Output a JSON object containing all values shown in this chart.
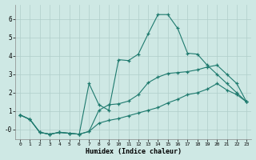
{
  "xlabel": "Humidex (Indice chaleur)",
  "ylabel": "",
  "background_color": "#cee8e4",
  "grid_color": "#b0ceca",
  "line_color": "#1e7a6e",
  "xlim": [
    -0.5,
    23.5
  ],
  "ylim": [
    -0.5,
    6.8
  ],
  "yticks": [
    0,
    1,
    2,
    3,
    4,
    5,
    6
  ],
  "ytick_labels": [
    "-0",
    "1",
    "2",
    "3",
    "4",
    "5",
    "6"
  ],
  "xticks": [
    0,
    1,
    2,
    3,
    4,
    5,
    6,
    7,
    8,
    9,
    10,
    11,
    12,
    13,
    14,
    15,
    16,
    17,
    18,
    19,
    20,
    21,
    22,
    23
  ],
  "curve_top_x": [
    0,
    1,
    2,
    3,
    4,
    5,
    6,
    7,
    8,
    9,
    10,
    11,
    12,
    13,
    14,
    15,
    16,
    17,
    18,
    19,
    20,
    21,
    22,
    23
  ],
  "curve_top_y": [
    0.8,
    0.55,
    -0.15,
    -0.25,
    -0.15,
    -0.2,
    -0.25,
    2.5,
    1.35,
    1.05,
    3.8,
    3.75,
    4.1,
    5.2,
    6.25,
    6.25,
    5.5,
    4.15,
    4.1,
    3.5,
    3.0,
    2.5,
    2.0,
    1.5
  ],
  "curve_mid_x": [
    0,
    1,
    2,
    3,
    4,
    5,
    6,
    7,
    8,
    9,
    10,
    11,
    12,
    13,
    14,
    15,
    16,
    17,
    18,
    19,
    20,
    21,
    22,
    23
  ],
  "curve_mid_y": [
    0.8,
    0.55,
    -0.15,
    -0.25,
    -0.15,
    -0.2,
    -0.25,
    -0.1,
    1.05,
    1.35,
    1.4,
    1.55,
    1.9,
    2.55,
    2.85,
    3.05,
    3.1,
    3.15,
    3.25,
    3.4,
    3.5,
    3.0,
    2.5,
    1.5
  ],
  "curve_bot_x": [
    0,
    1,
    2,
    3,
    4,
    5,
    6,
    7,
    8,
    9,
    10,
    11,
    12,
    13,
    14,
    15,
    16,
    17,
    18,
    19,
    20,
    21,
    22,
    23
  ],
  "curve_bot_y": [
    0.8,
    0.55,
    -0.15,
    -0.25,
    -0.15,
    -0.2,
    -0.25,
    -0.1,
    0.35,
    0.5,
    0.6,
    0.75,
    0.9,
    1.05,
    1.2,
    1.45,
    1.65,
    1.9,
    2.0,
    2.2,
    2.5,
    2.15,
    1.9,
    1.5
  ]
}
